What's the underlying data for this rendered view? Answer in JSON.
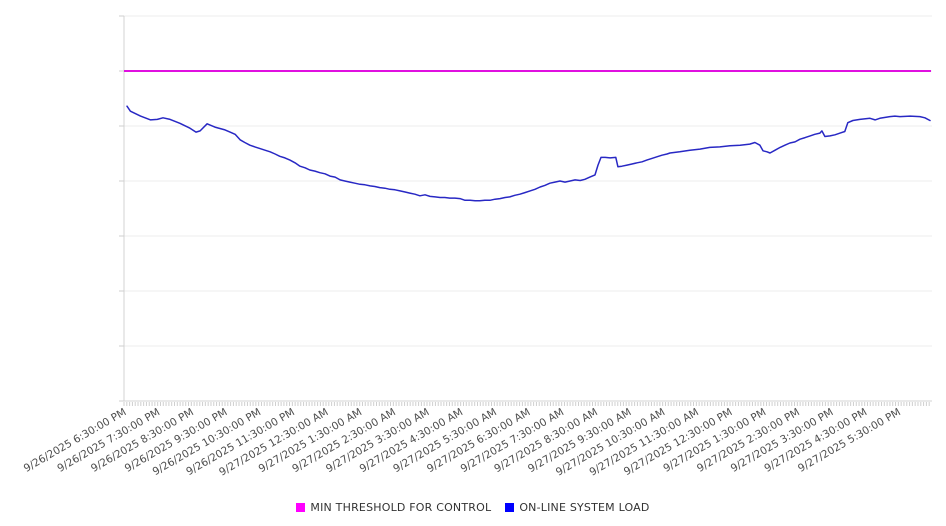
{
  "chart_data": {
    "type": "line",
    "title": "",
    "legend_position": "bottom",
    "x_axis": {
      "tick_labels": [
        "9/26/2025 6:30:00 PM",
        "9/26/2025 7:30:00 PM",
        "9/26/2025 8:30:00 PM",
        "9/26/2025 9:30:00 PM",
        "9/26/2025 10:30:00 PM",
        "9/26/2025 11:30:00 PM",
        "9/27/2025 12:30:00 AM",
        "9/27/2025 1:30:00 AM",
        "9/27/2025 2:30:00 AM",
        "9/27/2025 3:30:00 AM",
        "9/27/2025 4:30:00 AM",
        "9/27/2025 5:30:00 AM",
        "9/27/2025 6:30:00 AM",
        "9/27/2025 7:30:00 AM",
        "9/27/2025 8:30:00 AM",
        "9/27/2025 9:30:00 AM",
        "9/27/2025 10:30:00 AM",
        "9/27/2025 11:30:00 AM",
        "9/27/2025 12:30:00 PM",
        "9/27/2025 1:30:00 PM",
        "9/27/2025 2:30:00 PM",
        "9/27/2025 3:30:00 PM",
        "9/27/2025 4:30:00 PM",
        "9/27/2025 5:30:00 PM"
      ],
      "label_rotation_deg": -30,
      "minor_ticks_per_hour": 12
    },
    "y_axis": {
      "labels_visible": false,
      "gridline_count": 8,
      "units": "relative gridline units (bottom=0, top=7); no numeric labels shown in chart"
    },
    "ylim": [
      0,
      7
    ],
    "grid": true,
    "series": [
      {
        "name": "MIN THRESHOLD FOR CONTROL",
        "type": "threshold",
        "color": "#e010e0",
        "legend_color": "#ff00ff",
        "value": 6.0
      },
      {
        "name": "ON-LINE SYSTEM LOAD",
        "type": "line",
        "color": "#2828c4",
        "legend_color": "#0000ff",
        "x_unit": "hours after 9/26/2025 6:30:00 PM",
        "points": [
          [
            0,
            5.36
          ],
          [
            0.1,
            5.27
          ],
          [
            0.4,
            5.18
          ],
          [
            0.7,
            5.11
          ],
          [
            0.9,
            5.12
          ],
          [
            1.07,
            5.15
          ],
          [
            1.28,
            5.12
          ],
          [
            1.57,
            5.05
          ],
          [
            1.87,
            4.96
          ],
          [
            2.05,
            4.89
          ],
          [
            2.17,
            4.91
          ],
          [
            2.38,
            5.04
          ],
          [
            2.61,
            4.98
          ],
          [
            2.91,
            4.93
          ],
          [
            3.06,
            4.89
          ],
          [
            3.21,
            4.85
          ],
          [
            3.36,
            4.75
          ],
          [
            3.5,
            4.7
          ],
          [
            3.65,
            4.65
          ],
          [
            3.8,
            4.62
          ],
          [
            3.95,
            4.59
          ],
          [
            4.1,
            4.56
          ],
          [
            4.25,
            4.53
          ],
          [
            4.4,
            4.49
          ],
          [
            4.54,
            4.45
          ],
          [
            4.69,
            4.42
          ],
          [
            4.84,
            4.38
          ],
          [
            4.99,
            4.33
          ],
          [
            5.14,
            4.27
          ],
          [
            5.29,
            4.24
          ],
          [
            5.43,
            4.2
          ],
          [
            5.58,
            4.18
          ],
          [
            5.73,
            4.15
          ],
          [
            5.88,
            4.13
          ],
          [
            6.03,
            4.09
          ],
          [
            6.18,
            4.07
          ],
          [
            6.33,
            4.02
          ],
          [
            6.47,
            4.0
          ],
          [
            6.62,
            3.98
          ],
          [
            6.77,
            3.96
          ],
          [
            6.92,
            3.94
          ],
          [
            7.07,
            3.93
          ],
          [
            7.22,
            3.91
          ],
          [
            7.36,
            3.9
          ],
          [
            7.51,
            3.88
          ],
          [
            7.66,
            3.87
          ],
          [
            7.81,
            3.85
          ],
          [
            7.96,
            3.84
          ],
          [
            8.11,
            3.82
          ],
          [
            8.26,
            3.8
          ],
          [
            8.4,
            3.78
          ],
          [
            8.55,
            3.76
          ],
          [
            8.7,
            3.73
          ],
          [
            8.85,
            3.75
          ],
          [
            9.0,
            3.72
          ],
          [
            9.15,
            3.71
          ],
          [
            9.3,
            3.7
          ],
          [
            9.44,
            3.7
          ],
          [
            9.59,
            3.69
          ],
          [
            9.74,
            3.69
          ],
          [
            9.89,
            3.68
          ],
          [
            10.04,
            3.65
          ],
          [
            10.19,
            3.65
          ],
          [
            10.34,
            3.64
          ],
          [
            10.48,
            3.64
          ],
          [
            10.63,
            3.65
          ],
          [
            10.78,
            3.65
          ],
          [
            10.93,
            3.67
          ],
          [
            11.08,
            3.68
          ],
          [
            11.23,
            3.7
          ],
          [
            11.37,
            3.71
          ],
          [
            11.52,
            3.74
          ],
          [
            11.67,
            3.76
          ],
          [
            11.82,
            3.79
          ],
          [
            11.97,
            3.82
          ],
          [
            12.12,
            3.85
          ],
          [
            12.27,
            3.89
          ],
          [
            12.41,
            3.92
          ],
          [
            12.56,
            3.96
          ],
          [
            12.71,
            3.98
          ],
          [
            12.86,
            4.0
          ],
          [
            13.01,
            3.98
          ],
          [
            13.16,
            4.0
          ],
          [
            13.31,
            4.02
          ],
          [
            13.46,
            4.01
          ],
          [
            13.6,
            4.03
          ],
          [
            13.75,
            4.07
          ],
          [
            13.9,
            4.11
          ],
          [
            13.99,
            4.29
          ],
          [
            14.08,
            4.43
          ],
          [
            14.2,
            4.43
          ],
          [
            14.35,
            4.42
          ],
          [
            14.52,
            4.43
          ],
          [
            14.58,
            4.26
          ],
          [
            14.7,
            4.27
          ],
          [
            14.85,
            4.29
          ],
          [
            15.0,
            4.31
          ],
          [
            15.15,
            4.33
          ],
          [
            15.3,
            4.35
          ],
          [
            15.44,
            4.38
          ],
          [
            15.59,
            4.41
          ],
          [
            15.74,
            4.44
          ],
          [
            15.89,
            4.47
          ],
          [
            16.04,
            4.49
          ],
          [
            16.13,
            4.51
          ],
          [
            16.42,
            4.53
          ],
          [
            16.72,
            4.56
          ],
          [
            17.02,
            4.58
          ],
          [
            17.31,
            4.61
          ],
          [
            17.61,
            4.62
          ],
          [
            17.91,
            4.64
          ],
          [
            18.21,
            4.65
          ],
          [
            18.5,
            4.67
          ],
          [
            18.65,
            4.7
          ],
          [
            18.8,
            4.65
          ],
          [
            18.89,
            4.55
          ],
          [
            19.01,
            4.53
          ],
          [
            19.1,
            4.51
          ],
          [
            19.25,
            4.56
          ],
          [
            19.4,
            4.61
          ],
          [
            19.54,
            4.65
          ],
          [
            19.69,
            4.69
          ],
          [
            19.84,
            4.71
          ],
          [
            19.99,
            4.76
          ],
          [
            20.14,
            4.79
          ],
          [
            20.29,
            4.82
          ],
          [
            20.43,
            4.85
          ],
          [
            20.58,
            4.87
          ],
          [
            20.64,
            4.91
          ],
          [
            20.73,
            4.81
          ],
          [
            20.88,
            4.82
          ],
          [
            21.03,
            4.84
          ],
          [
            21.18,
            4.87
          ],
          [
            21.32,
            4.9
          ],
          [
            21.41,
            5.06
          ],
          [
            21.56,
            5.1
          ],
          [
            21.77,
            5.12
          ],
          [
            22.07,
            5.14
          ],
          [
            22.22,
            5.11
          ],
          [
            22.36,
            5.14
          ],
          [
            22.66,
            5.17
          ],
          [
            22.81,
            5.18
          ],
          [
            22.96,
            5.17
          ],
          [
            23.26,
            5.18
          ],
          [
            23.55,
            5.17
          ],
          [
            23.7,
            5.15
          ],
          [
            23.85,
            5.1
          ]
        ]
      }
    ],
    "colors": {
      "gridline": "#ececec",
      "axis_line": "#d3d3d3",
      "tick": "#cfcfcf",
      "tick_label_text": "#4d4d4d",
      "legend_text": "#333333",
      "background": "#ffffff"
    }
  }
}
